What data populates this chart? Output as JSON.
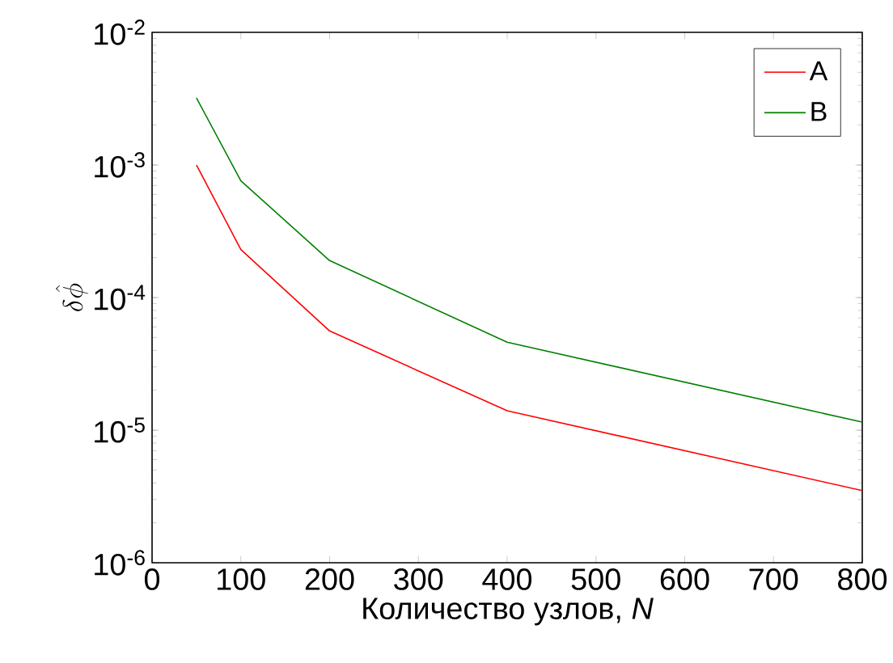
{
  "chart_data": {
    "type": "line",
    "xlabel": "Количество узлов, *N*",
    "ylabel": "\\delta\\hat{\\phi}",
    "log": "y",
    "grid": false,
    "legend": "top right",
    "marker": "none",
    "line_style": "solid",
    "xlim": [
      0,
      800
    ],
    "xticks": [
      0,
      100,
      200,
      300,
      400,
      500,
      600,
      700,
      800
    ],
    "ylim": [
      1e-06,
      0.01
    ],
    "yticks": [
      {
        "value": 1e-06,
        "label": "10$^{-6}$"
      },
      {
        "value": 1e-05,
        "label": "10$^{-5}$"
      },
      {
        "value": 0.0001,
        "label": "10$^{-4}$"
      },
      {
        "value": 0.001,
        "label": "10$^{-3}$"
      },
      {
        "value": 0.01,
        "label": "10$^{-2}$"
      }
    ],
    "x": [
      50,
      100,
      200,
      400,
      800
    ],
    "series": [
      {
        "name": "A",
        "color": "#ff0000",
        "values": [
          0.001,
          0.00023,
          5.6e-05,
          1.4e-05,
          3.5e-06
        ]
      },
      {
        "name": "B",
        "color": "#008000",
        "values": [
          0.0032,
          0.00076,
          0.00019,
          4.6e-05,
          1.15e-05
        ]
      }
    ]
  }
}
